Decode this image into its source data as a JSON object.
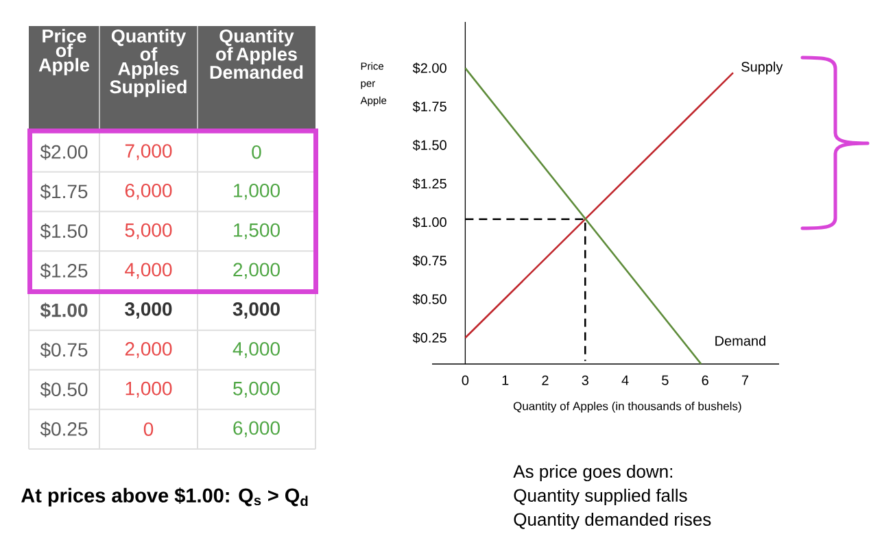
{
  "chart_data": [
    {
      "type": "heatmap",
      "ylabel": "Price of Apple",
      "categories": [
        "Quantity of Apples Supplied",
        "Quantity of Apples Demanded"
      ],
      "y_categories": [
        "$2.00",
        "$1.75",
        "$1.50",
        "$1.25",
        "**$1.00**",
        "$0.75",
        "$0.50",
        "$0.25"
      ],
      "cells": [
        [
          7000,
          0
        ],
        [
          6000,
          1000
        ],
        [
          5000,
          1500
        ],
        [
          4000,
          2000
        ],
        [
          3000,
          3000
        ],
        [
          2000,
          4000
        ],
        [
          1000,
          5000
        ],
        [
          0,
          6000
        ]
      ],
      "cell_labels": [
        [
          "7,000",
          "0"
        ],
        [
          "6,000",
          "1,000"
        ],
        [
          "5,000",
          "1,500"
        ],
        [
          "4,000",
          "2,000"
        ],
        [
          "**3,000**",
          "**3,000**"
        ],
        [
          "2,000",
          "4,000"
        ],
        [
          "1,000",
          "5,000"
        ],
        [
          "0",
          "6,000"
        ]
      ],
      "annotations": [
        "At prices above $1.00: Q$_{s}$ > Q$_{d}$"
      ]
    },
    {
      "type": "line",
      "xlabel": "Quantity of Apples (in thousands of bushels)",
      "ylabel": "Price per Apple",
      "xlim": [
        -0.83,
        7.85
      ],
      "ylim": [
        0.08,
        2.3
      ],
      "xticks": [
        0,
        1,
        2,
        3,
        4,
        5,
        6,
        7
      ],
      "yticks": [
        {
          "value": 0.25,
          "label": "$0.25"
        },
        {
          "value": 0.5,
          "label": "$0.50"
        },
        {
          "value": 0.75,
          "label": "$0.75"
        },
        {
          "value": 1,
          "label": "$1.00"
        },
        {
          "value": 1.25,
          "label": "$1.25"
        },
        {
          "value": 1.5,
          "label": "$1.50"
        },
        {
          "value": 1.75,
          "label": "$1.75"
        },
        {
          "value": 2,
          "label": "$2.00"
        }
      ],
      "line_style": "solid",
      "series": [
        {
          "name": "Supply",
          "color": "#c0272d",
          "x": [
            0,
            6.7
          ],
          "values": [
            0.25,
            1.97
          ]
        },
        {
          "name": "Demand",
          "color": "#5e8c3a",
          "x": [
            0,
            5.9
          ],
          "values": [
            2,
            0.08
          ]
        },
        {
          "color": "#000000",
          "x": [
            0,
            3,
            3
          ],
          "values": [
            1.02,
            1.02,
            0.1
          ],
          "line_style": "dashed"
        }
      ],
      "annotations": [
        "As price goes down:",
        "Quantity supplied falls",
        "Quantity demanded rises"
      ]
    }
  ]
}
